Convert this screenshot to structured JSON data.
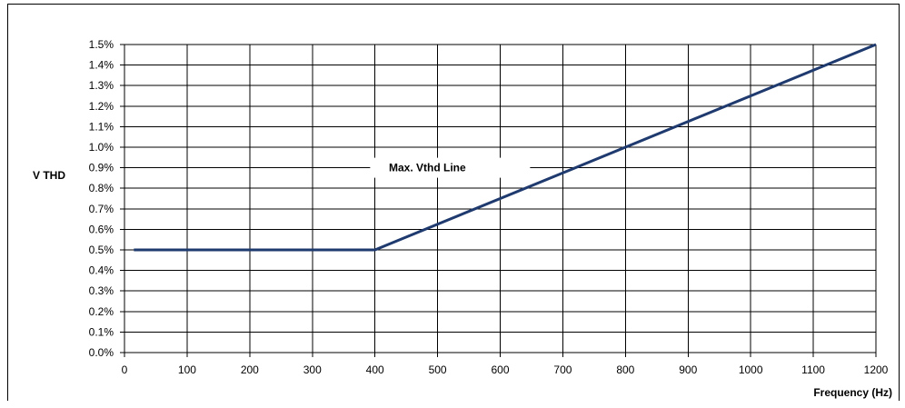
{
  "chart_data": {
    "type": "line",
    "title": "",
    "xlabel": "Frequency (Hz)",
    "ylabel": "V THD",
    "xlim": [
      0,
      1200
    ],
    "ylim": [
      0.0,
      1.5
    ],
    "xticks": [
      0,
      100,
      200,
      300,
      400,
      500,
      600,
      700,
      800,
      900,
      1000,
      1100,
      1200
    ],
    "xtick_labels": [
      "0",
      "100",
      "200",
      "300",
      "400",
      "500",
      "600",
      "700",
      "800",
      "900",
      "1000",
      "1100",
      "1200"
    ],
    "yticks": [
      0.0,
      0.1,
      0.2,
      0.3,
      0.4,
      0.5,
      0.6,
      0.7,
      0.8,
      0.9,
      1.0,
      1.1,
      1.2,
      1.3,
      1.4,
      1.5
    ],
    "ytick_labels": [
      "0.0%",
      "0.1%",
      "0.2%",
      "0.3%",
      "0.4%",
      "0.5%",
      "0.6%",
      "0.7%",
      "0.8%",
      "0.9%",
      "1.0%",
      "1.1%",
      "1.2%",
      "1.3%",
      "1.4%",
      "1.5%"
    ],
    "grid": true,
    "series": [
      {
        "name": "Max. Vthd Line",
        "color": "#1f3a6e",
        "x": [
          15,
          400,
          1200
        ],
        "y": [
          0.5,
          0.5,
          1.5
        ]
      }
    ],
    "annotations": [
      {
        "text": "Max. Vthd Line",
        "x": 520,
        "y": 0.9
      }
    ]
  }
}
